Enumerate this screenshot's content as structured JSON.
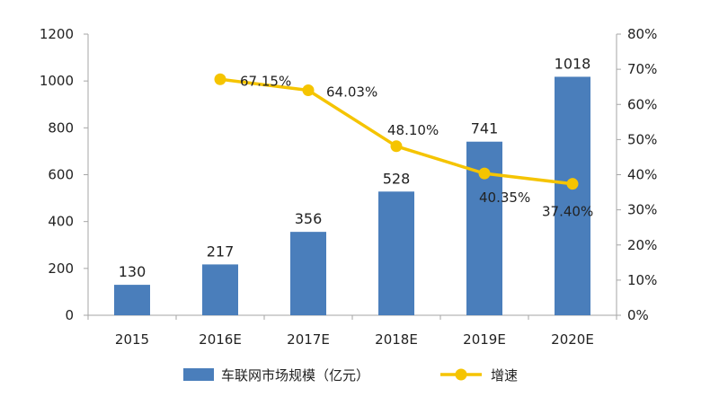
{
  "chart_data": {
    "type": "bar",
    "categories": [
      "2015",
      "2016E",
      "2017E",
      "2018E",
      "2019E",
      "2020E"
    ],
    "series": [
      {
        "name": "车联网市场规模（亿元）",
        "type": "bar",
        "axis": "left",
        "values": [
          130,
          217,
          356,
          528,
          741,
          1018
        ],
        "labels": [
          "130",
          "217",
          "356",
          "528",
          "741",
          "1018"
        ]
      },
      {
        "name": "增速",
        "type": "line",
        "axis": "right",
        "values": [
          null,
          67.15,
          64.03,
          48.1,
          40.35,
          37.4
        ],
        "labels": [
          "",
          "67.15%",
          "64.03%",
          "48.10%",
          "40.35%",
          "37.40%"
        ]
      }
    ],
    "ylim": [
      0,
      1200
    ],
    "y_ticks": [
      "0",
      "200",
      "400",
      "600",
      "800",
      "1000",
      "1200"
    ],
    "y2lim": [
      0,
      80
    ],
    "y2_ticks": [
      "0%",
      "10%",
      "20%",
      "30%",
      "40%",
      "50%",
      "60%",
      "70%",
      "80%"
    ],
    "legend_position": "bottom",
    "grid": false,
    "colors": {
      "bar": "#4a7ebb",
      "line": "#f5c400"
    }
  }
}
